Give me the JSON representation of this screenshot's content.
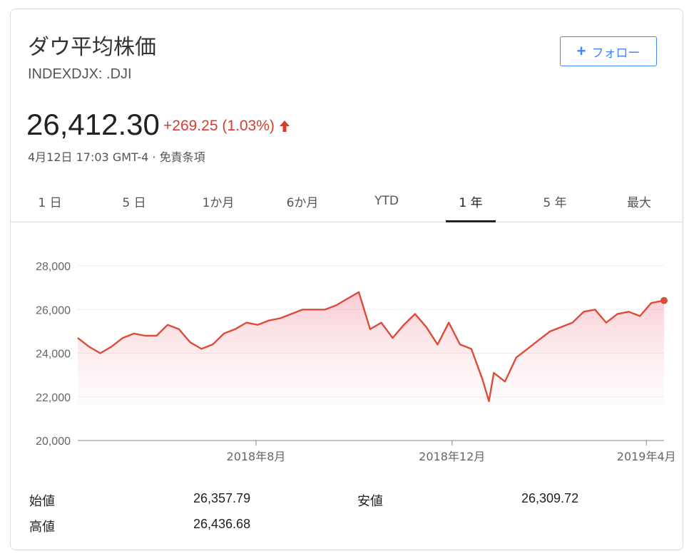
{
  "header": {
    "title": "ダウ平均株価",
    "ticker": "INDEXDJX: .DJI",
    "follow_label": "フォロー",
    "price": "26,412.30",
    "change": "+269.25 (1.03%)",
    "timestamp": "4月12日 17:03 GMT-4",
    "separator": "·",
    "disclaimer": "免責条項",
    "change_color": "#d23f31"
  },
  "tabs": [
    {
      "label": "1 日"
    },
    {
      "label": "5 日"
    },
    {
      "label": "1か月"
    },
    {
      "label": "6か月"
    },
    {
      "label": "YTD"
    },
    {
      "label": "1 年",
      "active": true
    },
    {
      "label": "5 年"
    },
    {
      "label": "最大"
    }
  ],
  "chart_data": {
    "type": "area",
    "title": "",
    "xlabel": "",
    "ylabel": "",
    "ylim": [
      20000,
      28000
    ],
    "yticks": [
      20000,
      22000,
      24000,
      26000,
      28000
    ],
    "ytick_labels": [
      "20,000",
      "22,000",
      "24,000",
      "26,000",
      "28,000"
    ],
    "xticks": [
      {
        "x": "2018-08-01",
        "label": "2018年8月"
      },
      {
        "x": "2018-12-01",
        "label": "2018年12月"
      },
      {
        "x": "2019-04-01",
        "label": "2019年4月"
      }
    ],
    "grid": true,
    "line_color": "#dd4b39",
    "x": [
      "2018-04-12",
      "2018-04-19",
      "2018-04-26",
      "2018-05-03",
      "2018-05-10",
      "2018-05-17",
      "2018-05-24",
      "2018-05-31",
      "2018-06-07",
      "2018-06-14",
      "2018-06-21",
      "2018-06-28",
      "2018-07-05",
      "2018-07-12",
      "2018-07-19",
      "2018-07-26",
      "2018-08-02",
      "2018-08-09",
      "2018-08-16",
      "2018-08-23",
      "2018-08-30",
      "2018-09-06",
      "2018-09-13",
      "2018-09-20",
      "2018-09-27",
      "2018-10-04",
      "2018-10-11",
      "2018-10-18",
      "2018-10-25",
      "2018-11-01",
      "2018-11-08",
      "2018-11-15",
      "2018-11-22",
      "2018-11-29",
      "2018-12-06",
      "2018-12-13",
      "2018-12-20",
      "2018-12-24",
      "2018-12-27",
      "2019-01-03",
      "2019-01-10",
      "2019-01-17",
      "2019-01-24",
      "2019-01-31",
      "2019-02-07",
      "2019-02-14",
      "2019-02-21",
      "2019-02-28",
      "2019-03-07",
      "2019-03-14",
      "2019-03-21",
      "2019-03-28",
      "2019-04-04",
      "2019-04-12"
    ],
    "values": [
      24700,
      24300,
      24000,
      24300,
      24700,
      24900,
      24800,
      24800,
      25300,
      25100,
      24500,
      24200,
      24400,
      24900,
      25100,
      25400,
      25300,
      25500,
      25600,
      25800,
      26000,
      26000,
      26000,
      26200,
      26500,
      26800,
      25100,
      25400,
      24700,
      25300,
      25800,
      25200,
      24400,
      25400,
      24400,
      24200,
      22800,
      21800,
      23100,
      22700,
      23800,
      24200,
      24600,
      25000,
      25200,
      25400,
      25900,
      26000,
      25400,
      25800,
      25900,
      25700,
      26300,
      26412
    ]
  },
  "stats": [
    {
      "label": "始値",
      "value": "26,357.79"
    },
    {
      "label": "安値",
      "value": "26,309.72"
    },
    {
      "label": "高値",
      "value": "26,436.68"
    }
  ]
}
